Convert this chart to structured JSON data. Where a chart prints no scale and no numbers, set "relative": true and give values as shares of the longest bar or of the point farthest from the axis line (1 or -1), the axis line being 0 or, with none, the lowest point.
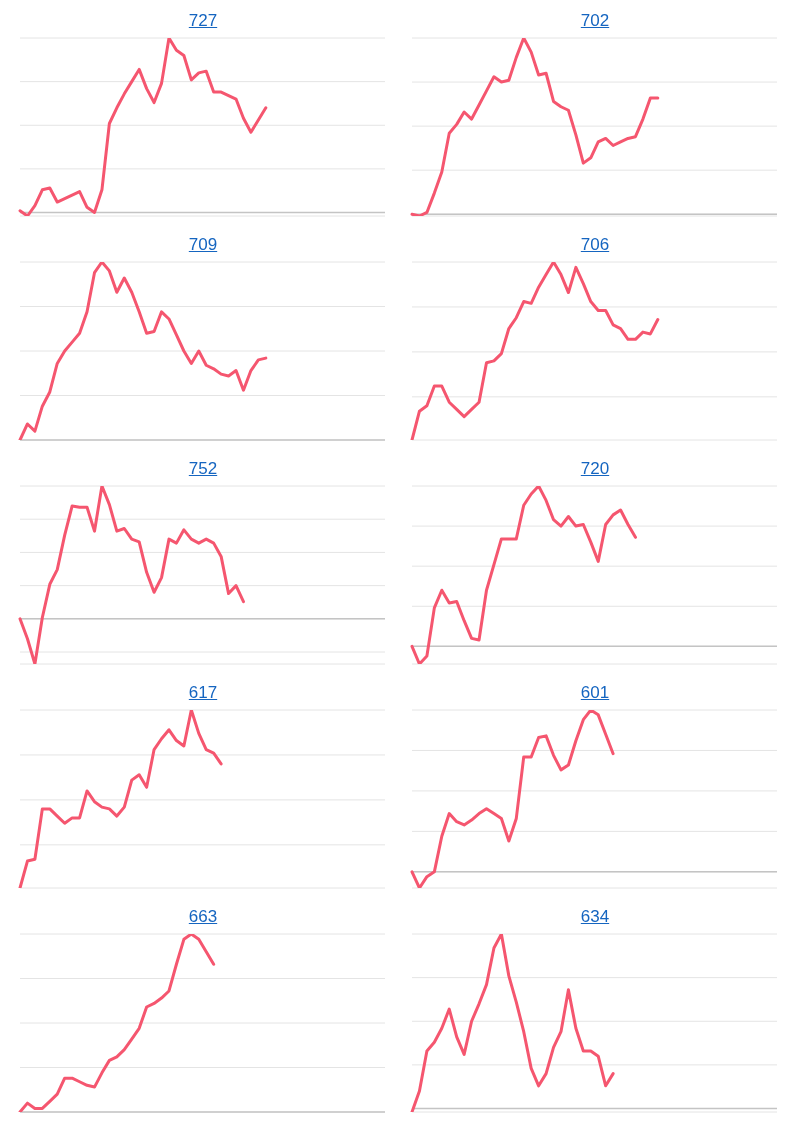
{
  "chart_data": [
    {
      "type": "line",
      "title": "727",
      "relative": true,
      "grid": "y",
      "color": "#f5566f",
      "categories": [
        null,
        null,
        null,
        null,
        null,
        null,
        null,
        null,
        null,
        null,
        null,
        null,
        null,
        null,
        null,
        null,
        null,
        null,
        null,
        null,
        null,
        null,
        null,
        null,
        null,
        null,
        null,
        null,
        null,
        null,
        null,
        null,
        null,
        null,
        null,
        null,
        null,
        null,
        null,
        null,
        null,
        null,
        null,
        null,
        null,
        null,
        null,
        null,
        null,
        null
      ],
      "values": [
        0.01,
        -0.02,
        0.04,
        0.13,
        0.14,
        0.06,
        0.08,
        0.1,
        0.12,
        0.03,
        0,
        0.13,
        0.51,
        0.6,
        0.68,
        0.75,
        0.82,
        0.71,
        0.63,
        0.74,
        1,
        0.93,
        0.9,
        0.76,
        0.8,
        0.81,
        0.69,
        0.69,
        0.67,
        0.65,
        0.54,
        0.46,
        0.53,
        0.6,
        null,
        null,
        null,
        null,
        null,
        null,
        null,
        null,
        null,
        null,
        null,
        null,
        null,
        null,
        null,
        null
      ]
    },
    {
      "type": "line",
      "title": "702",
      "relative": true,
      "grid": "y",
      "color": "#f5566f",
      "categories": [
        null,
        null,
        null,
        null,
        null,
        null,
        null,
        null,
        null,
        null,
        null,
        null,
        null,
        null,
        null,
        null,
        null,
        null,
        null,
        null,
        null,
        null,
        null,
        null,
        null,
        null,
        null,
        null,
        null,
        null,
        null,
        null,
        null,
        null,
        null,
        null,
        null,
        null,
        null,
        null,
        null,
        null,
        null,
        null,
        null,
        null,
        null,
        null,
        null,
        null
      ],
      "values": [
        0,
        -0.01,
        0.01,
        0.12,
        0.24,
        0.46,
        0.51,
        0.58,
        0.54,
        0.62,
        0.7,
        0.78,
        0.75,
        0.76,
        0.89,
        1,
        0.92,
        0.79,
        0.8,
        0.64,
        0.61,
        0.59,
        0.45,
        0.29,
        0.32,
        0.41,
        0.43,
        0.39,
        0.41,
        0.43,
        0.44,
        0.54,
        0.66,
        0.66,
        null,
        null,
        null,
        null,
        null,
        null,
        null,
        null,
        null,
        null,
        null,
        null,
        null,
        null,
        null,
        null
      ]
    },
    {
      "type": "line",
      "title": "709",
      "relative": true,
      "grid": "y",
      "color": "#f5566f",
      "categories": [
        null,
        null,
        null,
        null,
        null,
        null,
        null,
        null,
        null,
        null,
        null,
        null,
        null,
        null,
        null,
        null,
        null,
        null,
        null,
        null,
        null,
        null,
        null,
        null,
        null,
        null,
        null,
        null,
        null,
        null,
        null,
        null,
        null,
        null,
        null,
        null,
        null,
        null,
        null,
        null,
        null,
        null,
        null,
        null,
        null,
        null,
        null,
        null,
        null,
        null
      ],
      "values": [
        0,
        0.09,
        0.05,
        0.19,
        0.27,
        0.43,
        0.5,
        0.55,
        0.6,
        0.72,
        0.94,
        1,
        0.95,
        0.83,
        0.91,
        0.83,
        0.72,
        0.6,
        0.61,
        0.72,
        0.68,
        0.59,
        0.5,
        0.43,
        0.5,
        0.42,
        0.4,
        0.37,
        0.36,
        0.39,
        0.28,
        0.39,
        0.45,
        0.46,
        null,
        null,
        null,
        null,
        null,
        null,
        null,
        null,
        null,
        null,
        null,
        null,
        null,
        null,
        null,
        null
      ]
    },
    {
      "type": "line",
      "title": "706",
      "relative": true,
      "grid": "y",
      "color": "#f5566f",
      "categories": [
        null,
        null,
        null,
        null,
        null,
        null,
        null,
        null,
        null,
        null,
        null,
        null,
        null,
        null,
        null,
        null,
        null,
        null,
        null,
        null,
        null,
        null,
        null,
        null,
        null,
        null,
        null,
        null,
        null,
        null,
        null,
        null,
        null,
        null,
        null,
        null,
        null,
        null,
        null,
        null,
        null,
        null,
        null,
        null,
        null,
        null,
        null,
        null,
        null,
        null
      ],
      "values": [
        0.01,
        0.17,
        0.2,
        0.31,
        0.31,
        0.22,
        0.18,
        0.14,
        0.18,
        0.22,
        0.44,
        0.45,
        0.49,
        0.63,
        0.69,
        0.78,
        0.77,
        0.86,
        0.93,
        1,
        0.93,
        0.83,
        0.97,
        0.88,
        0.78,
        0.73,
        0.73,
        0.65,
        0.63,
        0.57,
        0.57,
        0.61,
        0.6,
        0.68,
        null,
        null,
        null,
        null,
        null,
        null,
        null,
        null,
        null,
        null,
        null,
        null,
        null,
        null,
        null,
        null
      ]
    },
    {
      "type": "line",
      "title": "752",
      "relative": true,
      "grid": "y",
      "color": "#f5566f",
      "categories": [
        null,
        null,
        null,
        null,
        null,
        null,
        null,
        null,
        null,
        null,
        null,
        null,
        null,
        null,
        null,
        null,
        null,
        null,
        null,
        null,
        null,
        null,
        null,
        null,
        null,
        null,
        null,
        null,
        null,
        null,
        null,
        null,
        null,
        null,
        null,
        null,
        null,
        null,
        null,
        null,
        null,
        null,
        null,
        null,
        null,
        null,
        null,
        null,
        null,
        null
      ],
      "values": [
        0,
        -0.15,
        -0.34,
        0.01,
        0.26,
        0.37,
        0.63,
        0.85,
        0.84,
        0.84,
        0.66,
        1,
        0.86,
        0.66,
        0.68,
        0.6,
        0.58,
        0.35,
        0.2,
        0.31,
        0.6,
        0.57,
        0.67,
        0.6,
        0.57,
        0.6,
        0.57,
        0.47,
        0.19,
        0.25,
        0.13,
        null,
        null,
        null,
        null,
        null,
        null,
        null,
        null,
        null,
        null,
        null,
        null,
        null,
        null,
        null,
        null,
        null,
        null,
        null
      ]
    },
    {
      "type": "line",
      "title": "720",
      "relative": true,
      "grid": "y",
      "color": "#f5566f",
      "categories": [
        null,
        null,
        null,
        null,
        null,
        null,
        null,
        null,
        null,
        null,
        null,
        null,
        null,
        null,
        null,
        null,
        null,
        null,
        null,
        null,
        null,
        null,
        null,
        null,
        null,
        null,
        null,
        null,
        null,
        null,
        null,
        null,
        null,
        null,
        null,
        null,
        null,
        null,
        null,
        null,
        null,
        null,
        null,
        null,
        null,
        null,
        null,
        null,
        null,
        null
      ],
      "values": [
        0,
        -0.11,
        -0.06,
        0.24,
        0.35,
        0.27,
        0.28,
        0.16,
        0.05,
        0.04,
        0.35,
        0.51,
        0.67,
        0.67,
        0.67,
        0.88,
        0.95,
        1,
        0.91,
        0.79,
        0.75,
        0.81,
        0.75,
        0.76,
        0.65,
        0.53,
        0.76,
        0.82,
        0.85,
        0.76,
        0.68,
        null,
        null,
        null,
        null,
        null,
        null,
        null,
        null,
        null,
        null,
        null,
        null,
        null,
        null,
        null,
        null,
        null,
        null,
        null
      ]
    },
    {
      "type": "line",
      "title": "617",
      "relative": true,
      "grid": "y",
      "color": "#f5566f",
      "categories": [
        null,
        null,
        null,
        null,
        null,
        null,
        null,
        null,
        null,
        null,
        null,
        null,
        null,
        null,
        null,
        null,
        null,
        null,
        null,
        null,
        null,
        null,
        null,
        null,
        null,
        null,
        null,
        null,
        null,
        null,
        null,
        null,
        null,
        null,
        null,
        null,
        null,
        null,
        null,
        null,
        null,
        null,
        null,
        null,
        null,
        null,
        null,
        null,
        null,
        null
      ],
      "values": [
        0.01,
        0.16,
        0.17,
        0.45,
        0.45,
        0.41,
        0.37,
        0.4,
        0.4,
        0.55,
        0.49,
        0.46,
        0.45,
        0.41,
        0.46,
        0.61,
        0.64,
        0.57,
        0.78,
        0.84,
        0.89,
        0.83,
        0.8,
        1,
        0.87,
        0.78,
        0.76,
        0.7,
        null,
        null,
        null,
        null,
        null,
        null,
        null,
        null,
        null,
        null,
        null,
        null,
        null,
        null,
        null,
        null,
        null,
        null,
        null,
        null,
        null,
        null
      ]
    },
    {
      "type": "line",
      "title": "601",
      "relative": true,
      "grid": "y",
      "color": "#f5566f",
      "categories": [
        null,
        null,
        null,
        null,
        null,
        null,
        null,
        null,
        null,
        null,
        null,
        null,
        null,
        null,
        null,
        null,
        null,
        null,
        null,
        null,
        null,
        null,
        null,
        null,
        null,
        null,
        null,
        null,
        null,
        null,
        null,
        null,
        null,
        null,
        null,
        null,
        null,
        null,
        null,
        null,
        null,
        null,
        null,
        null,
        null,
        null,
        null,
        null,
        null,
        null
      ],
      "values": [
        0,
        -0.1,
        -0.03,
        0,
        0.22,
        0.36,
        0.31,
        0.29,
        0.32,
        0.36,
        0.39,
        0.36,
        0.33,
        0.19,
        0.33,
        0.71,
        0.71,
        0.83,
        0.84,
        0.72,
        0.63,
        0.66,
        0.81,
        0.94,
        1,
        0.97,
        0.85,
        0.73,
        null,
        null,
        null,
        null,
        null,
        null,
        null,
        null,
        null,
        null,
        null,
        null,
        null,
        null,
        null,
        null,
        null,
        null,
        null,
        null,
        null,
        null
      ]
    },
    {
      "type": "line",
      "title": "663",
      "relative": true,
      "grid": "y",
      "color": "#f5566f",
      "categories": [
        null,
        null,
        null,
        null,
        null,
        null,
        null,
        null,
        null,
        null,
        null,
        null,
        null,
        null,
        null,
        null,
        null,
        null,
        null,
        null,
        null,
        null,
        null,
        null,
        null,
        null,
        null,
        null,
        null,
        null,
        null,
        null,
        null,
        null,
        null,
        null,
        null,
        null,
        null,
        null,
        null,
        null,
        null,
        null,
        null,
        null,
        null,
        null,
        null,
        null
      ],
      "values": [
        0,
        0.05,
        0.02,
        0.02,
        0.06,
        0.1,
        0.19,
        0.19,
        0.17,
        0.15,
        0.14,
        0.22,
        0.29,
        0.31,
        0.35,
        0.41,
        0.47,
        0.59,
        0.61,
        0.64,
        0.68,
        0.83,
        0.97,
        1,
        0.97,
        0.9,
        0.83,
        null,
        null,
        null,
        null,
        null,
        null,
        null,
        null,
        null,
        null,
        null,
        null,
        null,
        null,
        null,
        null,
        null,
        null,
        null,
        null,
        null,
        null,
        null
      ]
    },
    {
      "type": "line",
      "title": "634",
      "relative": true,
      "grid": "y",
      "color": "#f5566f",
      "categories": [
        null,
        null,
        null,
        null,
        null,
        null,
        null,
        null,
        null,
        null,
        null,
        null,
        null,
        null,
        null,
        null,
        null,
        null,
        null,
        null,
        null,
        null,
        null,
        null,
        null,
        null,
        null,
        null,
        null,
        null,
        null,
        null,
        null,
        null,
        null,
        null,
        null,
        null,
        null,
        null,
        null,
        null,
        null,
        null,
        null,
        null,
        null,
        null,
        null,
        null
      ],
      "values": [
        -0.02,
        0.1,
        0.33,
        0.38,
        0.46,
        0.57,
        0.41,
        0.31,
        0.5,
        0.6,
        0.71,
        0.92,
        1,
        0.76,
        0.61,
        0.44,
        0.23,
        0.13,
        0.2,
        0.35,
        0.44,
        0.68,
        0.46,
        0.33,
        0.33,
        0.3,
        0.13,
        0.2,
        null,
        null,
        null,
        null,
        null,
        null,
        null,
        null,
        null,
        null,
        null,
        null,
        null,
        null,
        null,
        null,
        null,
        null,
        null,
        null,
        null,
        null
      ]
    }
  ]
}
